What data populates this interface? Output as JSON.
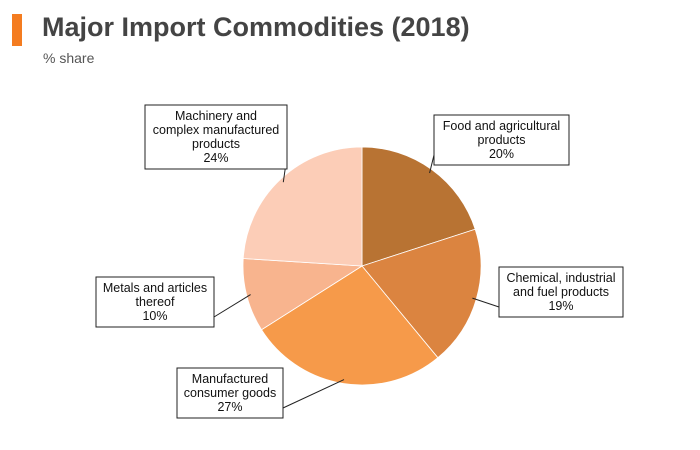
{
  "header": {
    "title": "Major Import Commodities (2018)",
    "subtitle": "% share"
  },
  "colors": {
    "accent": "#f47c20"
  },
  "chart_data": {
    "type": "pie",
    "title": "Major Import Commodities (2018)",
    "subtitle": "% share",
    "unit": "%",
    "start": "12 o'clock, clockwise",
    "slices": [
      {
        "label": "Food and agricultural products",
        "label_lines": [
          "Food and agricultural",
          "products",
          "20%"
        ],
        "value": 20,
        "color": "#b87333"
      },
      {
        "label": "Chemical, industrial and fuel products",
        "label_lines": [
          "Chemical, industrial",
          "and fuel products",
          "19%"
        ],
        "value": 19,
        "color": "#db8440"
      },
      {
        "label": "Manufactured consumer goods",
        "label_lines": [
          "Manufactured",
          "consumer goods",
          "27%"
        ],
        "value": 27,
        "color": "#f69a4a"
      },
      {
        "label": "Metals and articles thereof",
        "label_lines": [
          "Metals and articles",
          "thereof",
          "10%"
        ],
        "value": 10,
        "color": "#f8b48e"
      },
      {
        "label": "Machinery and complex manufactured products",
        "label_lines": [
          "Machinery and",
          "complex manufactured",
          "products",
          "24%"
        ],
        "value": 24,
        "color": "#fccdb7"
      }
    ]
  }
}
